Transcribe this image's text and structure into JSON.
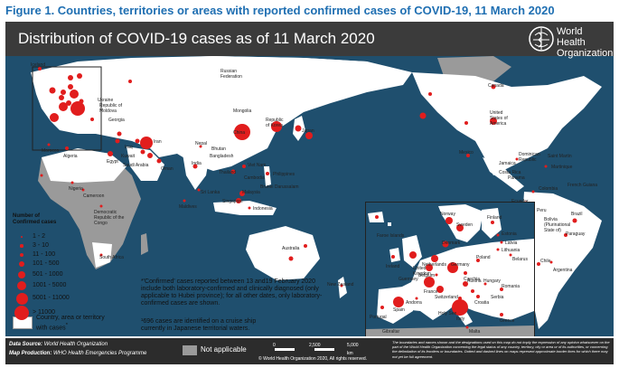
{
  "figure_title": "Figure 1. Countries, territories or areas with reported confirmed cases of COVID-19, 11 March 2020",
  "map_title": "Distribution of COVID-19 cases as of 11 March 2020",
  "who": {
    "name": "World Health Organization",
    "icon": "who-emblem-icon"
  },
  "colors": {
    "ocean": "#1f4f6e",
    "affected_land": "#ffffff",
    "not_applicable": "#9a9a9a",
    "case_marker": "#e11d1d",
    "title_blue": "#1f6fb2"
  },
  "legend": {
    "title_line1": "Number of",
    "title_line2": "Confirmed cases",
    "classes": [
      "1 - 2",
      "3 - 10",
      "11 - 100",
      "101 - 500",
      "501 - 1000",
      "1001 - 5000",
      "5001 - 11000",
      "> 11000"
    ],
    "country_label_line1": "Country, area or territory",
    "country_label_line2": "with cases",
    "country_label_sup": "*"
  },
  "notes": {
    "confirmed_note_line1": "*'Confirmed' cases reported between 13 and19 February 2020",
    "confirmed_note_line2": "include both laboratory-confirmed and clinically diagnosed (only",
    "confirmed_note_line3": "applicable to Hubei province); for all other dates, only laboratory-",
    "confirmed_note_line4": "confirmed cases are shown.",
    "cruise_note_line1": "¹696 cases are identified on a cruise ship",
    "cruise_note_line2": "currently in Japanese territorial waters."
  },
  "footer": {
    "data_source_label": "Data Source:",
    "data_source_value": "World Health Organization",
    "map_production_label": "Map Production:",
    "map_production_value": "WHO Health Emergencies Programme",
    "not_applicable": "Not applicable",
    "scale_labels": [
      "0",
      "2,500",
      "5,000"
    ],
    "scale_unit": "km",
    "copyright": "© World Health Organization 2020, All rights reserved.",
    "disclaimer": "The boundaries and names shown and the designations used on this map do not imply the expression of any opinion whatsoever on the part of the World Health Organization concerning the legal status of any country, territory, city or area or of its authorities, or concerning the delimitation of its frontiers or boundaries. Dotted and dashed lines on maps represent approximate border lines for which there may not yet be full agreement."
  },
  "places": {
    "iceland": "Iceland",
    "russia": "Russian Federation",
    "canada": "Canada",
    "usa": "United States of America",
    "ukraine": "Ukraine",
    "moldova": "Republic of Moldova",
    "georgia": "Georgia",
    "mongolia": "Mongolia",
    "korea": "Republic of Korea",
    "japan": "Japan",
    "china": "China",
    "nepal": "Nepal",
    "bhutan": "Bhutan",
    "bangladesh": "Bangladesh",
    "india": "India",
    "iran": "Iran",
    "iraq": "Iraq",
    "kuwait": "Kuwait",
    "saudi": "Saudi Arabia",
    "oman": "Oman",
    "egypt": "Egypt",
    "algeria": "Algeria",
    "morocco": "Morocco",
    "nigeria": "Nigeria",
    "cameroon": "Cameroon",
    "drc": "Democratic Republic of the Congo",
    "southafrica": "South Africa",
    "srilanka": "Sri Lanka",
    "maldives": "Maldives",
    "vietnam": "Viet Nam",
    "cambodia": "Cambodia",
    "thailand": "Thailand",
    "malaysia": "Malaysia",
    "singapore": "Singapore",
    "indonesia": "Indonesia",
    "philippines": "Philippines",
    "brunei": "Brunei Darussalam",
    "australia": "Australia",
    "newzealand": "New Zealand",
    "mexico": "Mexico",
    "dominican": "Dominican Republic",
    "jamaica": "Jamaica",
    "martinique": "Martinique",
    "saintmartin": "Saint Martin",
    "colombia": "Colombia",
    "frenchguiana": "French Guiana",
    "peru": "Peru",
    "bolivia": "Bolivia (Plurinational State of)",
    "paraguay": "Paraguay",
    "chile": "Chile",
    "argentina": "Argentina",
    "brazil": "Brazil",
    "panama": "Panama",
    "costarica": "Costa Rica",
    "ecuador": "Ecuador",
    "faroe": "Faroe Islands",
    "norway": "Norway",
    "sweden": "Sweden",
    "finland": "Finland",
    "estonia": "Estonia",
    "latvia": "Latvia",
    "lithuania": "Lithuania",
    "belarus": "Belarus",
    "denmark": "Denmark",
    "uk": "United Kingdom",
    "ireland": "Ireland",
    "netherlands": "Netherlands",
    "belgium": "Belgium",
    "germany": "Germany",
    "poland": "Poland",
    "czechia": "Czechia",
    "france": "France",
    "switzerland": "Switzerland",
    "austria": "Austria",
    "hungary": "Hungary",
    "romania": "Romania",
    "italy": "Italy",
    "holysee": "Holy See",
    "andorra": "Andorra",
    "spain": "Spain",
    "portugal": "Portugal",
    "gibraltar": "Gibraltar",
    "greece": "Greece",
    "guernsey": "Guernsey",
    "malta": "Malta",
    "croatia": "Croatia",
    "serbia": "Serbia"
  }
}
